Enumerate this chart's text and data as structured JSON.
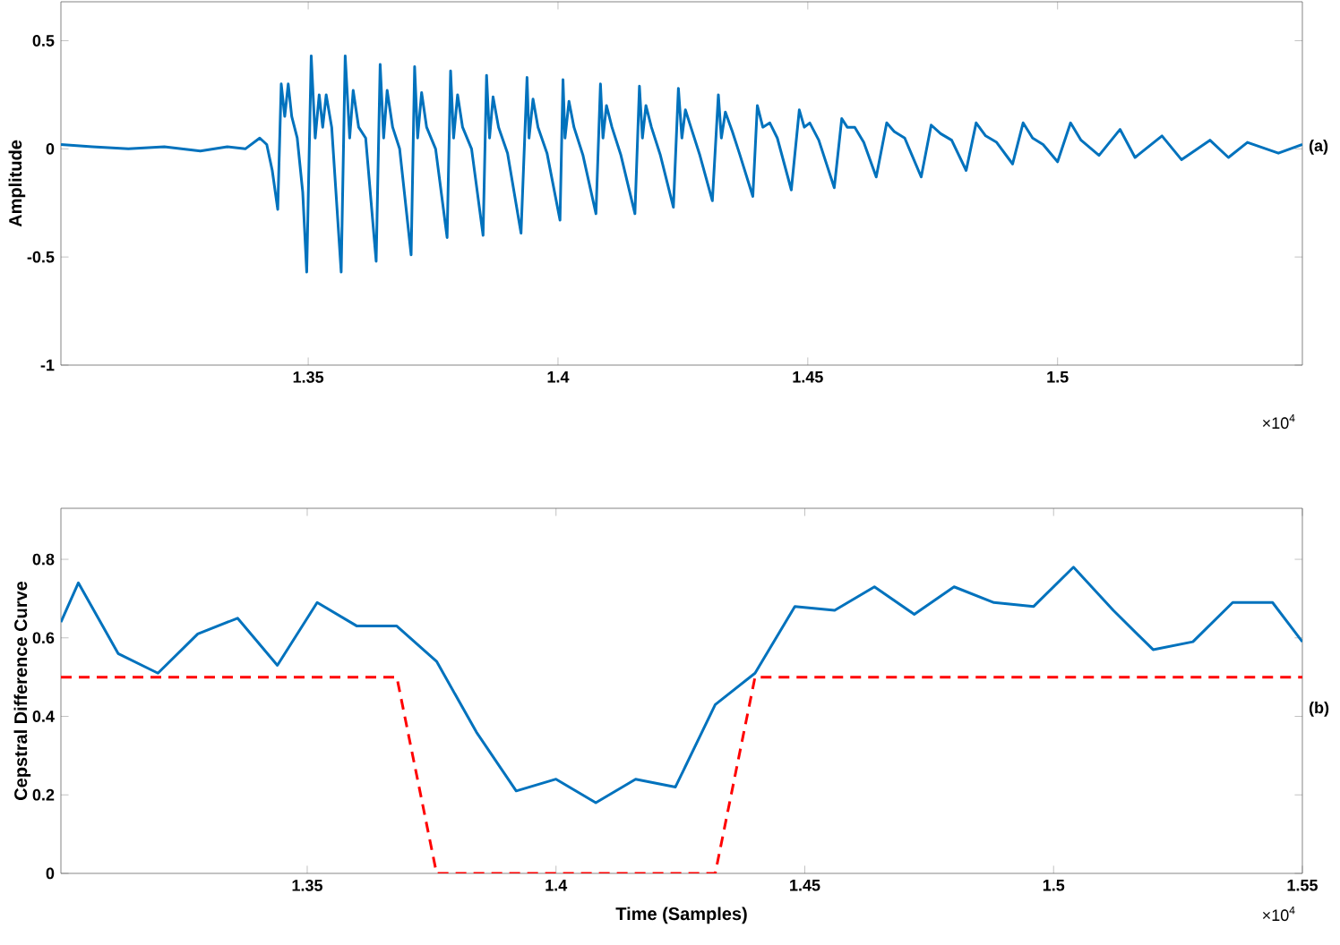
{
  "chart_data": [
    {
      "type": "line",
      "ylabel": "Amplitude",
      "annotations": [
        "(a)",
        "×10$^{4}$"
      ],
      "xlim": [
        1.3005,
        1.549
      ],
      "ylim": [
        -1,
        0.68
      ],
      "xticks": [
        1.35,
        1.4,
        1.45,
        1.5
      ],
      "yticks": [
        -1,
        -0.5,
        0,
        0.5
      ],
      "grid": false,
      "marker": "none",
      "series": [
        {
          "color": "#0072bd",
          "line_style": "solid",
          "x": [
            1.3005,
            1.3068,
            1.314,
            1.3212,
            1.3284,
            1.3338,
            1.3374,
            1.3403,
            1.3417,
            1.3428,
            1.3439,
            1.3446,
            1.3453,
            1.346,
            1.3467,
            1.3478,
            1.3489,
            1.3497,
            1.3506,
            1.3514,
            1.3522,
            1.3529,
            1.3536,
            1.3547,
            1.3566,
            1.3574,
            1.3583,
            1.359,
            1.3601,
            1.3615,
            1.3636,
            1.3644,
            1.3651,
            1.3658,
            1.3669,
            1.3683,
            1.3706,
            1.3713,
            1.3719,
            1.3727,
            1.3737,
            1.3755,
            1.3778,
            1.3785,
            1.3791,
            1.3799,
            1.3809,
            1.3827,
            1.385,
            1.3857,
            1.3863,
            1.387,
            1.3881,
            1.3899,
            1.3926,
            1.3938,
            1.3942,
            1.395,
            1.396,
            1.3978,
            1.4004,
            1.401,
            1.4014,
            1.4022,
            1.4032,
            1.405,
            1.4076,
            1.4085,
            1.409,
            1.4097,
            1.4108,
            1.4126,
            1.4154,
            1.4163,
            1.4169,
            1.4176,
            1.4187,
            1.4205,
            1.4231,
            1.4241,
            1.4248,
            1.4255,
            1.4266,
            1.4284,
            1.4309,
            1.4321,
            1.4327,
            1.4335,
            1.4349,
            1.4363,
            1.439,
            1.4399,
            1.441,
            1.4424,
            1.4439,
            1.4467,
            1.4483,
            1.4493,
            1.4504,
            1.4522,
            1.4553,
            1.4568,
            1.4579,
            1.4594,
            1.4612,
            1.4637,
            1.4658,
            1.4673,
            1.4694,
            1.4727,
            1.4747,
            1.4766,
            1.4788,
            1.4817,
            1.4837,
            1.4856,
            1.4878,
            1.491,
            1.4931,
            1.495,
            1.4971,
            1.5,
            1.5026,
            1.5047,
            1.5083,
            1.5125,
            1.5155,
            1.5209,
            1.5248,
            1.5305,
            1.5342,
            1.538,
            1.5442,
            1.549
          ],
          "values": [
            0.02,
            0.01,
            0.0,
            0.01,
            -0.01,
            0.01,
            0.0,
            0.05,
            0.02,
            -0.1,
            -0.28,
            0.3,
            0.15,
            0.3,
            0.15,
            0.05,
            -0.2,
            -0.57,
            0.43,
            0.05,
            0.25,
            0.1,
            0.25,
            0.1,
            -0.57,
            0.43,
            0.05,
            0.27,
            0.1,
            0.05,
            -0.52,
            0.39,
            0.05,
            0.27,
            0.1,
            0.0,
            -0.49,
            0.38,
            0.05,
            0.26,
            0.1,
            0.0,
            -0.41,
            0.36,
            0.05,
            0.25,
            0.1,
            0.0,
            -0.4,
            0.34,
            0.05,
            0.24,
            0.1,
            -0.02,
            -0.39,
            0.33,
            0.05,
            0.23,
            0.1,
            -0.02,
            -0.33,
            0.32,
            0.05,
            0.22,
            0.1,
            -0.03,
            -0.3,
            0.3,
            0.05,
            0.2,
            0.1,
            -0.03,
            -0.3,
            0.29,
            0.05,
            0.2,
            0.1,
            -0.03,
            -0.27,
            0.28,
            0.05,
            0.18,
            0.1,
            -0.03,
            -0.24,
            0.25,
            0.05,
            0.17,
            0.08,
            -0.02,
            -0.22,
            0.2,
            0.1,
            0.12,
            0.05,
            -0.19,
            0.18,
            0.1,
            0.12,
            0.04,
            -0.18,
            0.14,
            0.1,
            0.1,
            0.03,
            -0.13,
            0.12,
            0.08,
            0.05,
            -0.13,
            0.11,
            0.07,
            0.04,
            -0.1,
            0.12,
            0.06,
            0.03,
            -0.07,
            0.12,
            0.05,
            0.02,
            -0.06,
            0.12,
            0.04,
            -0.03,
            0.09,
            -0.04,
            0.06,
            -0.05,
            0.04,
            -0.04,
            0.03,
            -0.02,
            0.02
          ]
        }
      ]
    },
    {
      "type": "line",
      "xlabel": "Time (Samples)",
      "ylabel": "Cepstral Difference Curve",
      "annotations": [
        "(b)",
        "×10$^{4}$"
      ],
      "xlim": [
        1.3005,
        1.55
      ],
      "ylim": [
        0,
        0.93
      ],
      "xticks": [
        1.35,
        1.4,
        1.45,
        1.5,
        1.55
      ],
      "yticks": [
        0,
        0.2,
        0.4,
        0.6,
        0.8
      ],
      "grid": false,
      "marker": "none",
      "series": [
        {
          "color": "#0072bd",
          "line_style": "solid",
          "x": [
            1.3005,
            1.304,
            1.312,
            1.32,
            1.328,
            1.336,
            1.344,
            1.352,
            1.36,
            1.368,
            1.376,
            1.384,
            1.392,
            1.4,
            1.408,
            1.416,
            1.424,
            1.432,
            1.44,
            1.448,
            1.456,
            1.464,
            1.472,
            1.48,
            1.488,
            1.496,
            1.504,
            1.512,
            1.52,
            1.528,
            1.536,
            1.544,
            1.55
          ],
          "values": [
            0.64,
            0.74,
            0.56,
            0.51,
            0.61,
            0.65,
            0.53,
            0.69,
            0.63,
            0.63,
            0.54,
            0.36,
            0.21,
            0.24,
            0.18,
            0.24,
            0.22,
            0.43,
            0.51,
            0.68,
            0.67,
            0.73,
            0.66,
            0.73,
            0.69,
            0.68,
            0.78,
            0.67,
            0.57,
            0.59,
            0.69,
            0.69,
            0.59
          ]
        },
        {
          "color": "#ff0000",
          "line_style": "dashed",
          "x": [
            1.3005,
            1.368,
            1.376,
            1.432,
            1.44,
            1.55
          ],
          "values": [
            0.5,
            0.5,
            0,
            0,
            0.5,
            0.5
          ]
        }
      ]
    }
  ]
}
